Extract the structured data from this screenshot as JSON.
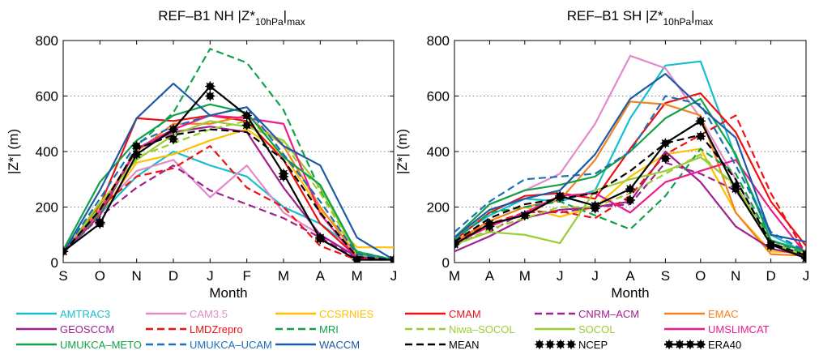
{
  "chart_data": [
    {
      "type": "line",
      "title": "REF–B1 NH |Z*",
      "title_sub": "10hPa",
      "title_tail": "|",
      "title_sub2": "max",
      "xlabel": "Month",
      "ylabel": "|Z*| (m)",
      "categories": [
        "S",
        "O",
        "N",
        "D",
        "J",
        "F",
        "M",
        "A",
        "M",
        "J"
      ],
      "yticks": [
        0,
        200,
        400,
        600,
        800
      ],
      "ylim": [
        0,
        800
      ],
      "grid": "horizontal dotted",
      "series": [
        {
          "name": "AMTRAC3",
          "values": [
            45,
            175,
            310,
            400,
            350,
            310,
            200,
            140,
            40,
            10
          ]
        },
        {
          "name": "CAM3.5",
          "values": [
            40,
            190,
            330,
            370,
            235,
            350,
            180,
            100,
            20,
            10
          ]
        },
        {
          "name": "CCSRNIES",
          "values": [
            35,
            175,
            360,
            390,
            440,
            480,
            390,
            190,
            55,
            55
          ]
        },
        {
          "name": "CMAM",
          "values": [
            35,
            205,
            520,
            510,
            530,
            510,
            370,
            140,
            20,
            10
          ]
        },
        {
          "name": "CNRM–ACM",
          "values": [
            35,
            165,
            270,
            350,
            260,
            210,
            160,
            90,
            15,
            10
          ]
        },
        {
          "name": "EMAC",
          "values": [
            35,
            200,
            400,
            500,
            500,
            530,
            420,
            200,
            25,
            10
          ]
        },
        {
          "name": "GEOSCCM",
          "values": [
            35,
            170,
            410,
            470,
            490,
            470,
            270,
            100,
            20,
            10
          ]
        },
        {
          "name": "LMDZrepro",
          "values": [
            40,
            200,
            310,
            340,
            420,
            270,
            200,
            60,
            10,
            10
          ]
        },
        {
          "name": "MRI",
          "values": [
            35,
            175,
            420,
            540,
            770,
            720,
            550,
            260,
            40,
            10
          ]
        },
        {
          "name": "Niwa–SOCOL",
          "values": [
            35,
            200,
            380,
            430,
            480,
            510,
            430,
            250,
            30,
            10
          ]
        },
        {
          "name": "SOCOL",
          "values": [
            35,
            215,
            370,
            460,
            510,
            490,
            440,
            270,
            30,
            10
          ]
        },
        {
          "name": "UMSLIMCAT",
          "values": [
            35,
            185,
            410,
            480,
            530,
            520,
            500,
            175,
            15,
            10
          ]
        },
        {
          "name": "UMUKCA–METO",
          "values": [
            45,
            290,
            440,
            530,
            570,
            540,
            380,
            280,
            35,
            10
          ]
        },
        {
          "name": "UMUKCA–UCAM",
          "values": [
            35,
            230,
            430,
            490,
            530,
            560,
            390,
            220,
            30,
            10
          ]
        },
        {
          "name": "WACCM",
          "values": [
            35,
            260,
            520,
            645,
            530,
            560,
            420,
            350,
            90,
            10
          ]
        },
        {
          "name": "MEAN",
          "values": [
            35,
            190,
            410,
            460,
            480,
            470,
            370,
            180,
            20,
            10
          ]
        },
        {
          "name": "NCEP",
          "values": [
            40,
            145,
            420,
            445,
            600,
            495,
            310,
            90,
            10,
            10
          ]
        },
        {
          "name": "ERA40",
          "values": [
            40,
            140,
            390,
            480,
            635,
            530,
            320,
            85,
            10,
            10
          ]
        }
      ]
    },
    {
      "type": "line",
      "title": "REF–B1 SH |Z*",
      "title_sub": "10hPa",
      "title_tail": "|",
      "title_sub2": "max",
      "xlabel": "Month",
      "ylabel": "|Z*| (m)",
      "categories": [
        "M",
        "A",
        "M",
        "J",
        "J",
        "A",
        "S",
        "O",
        "N",
        "D",
        "J"
      ],
      "yticks": [
        0,
        200,
        400,
        600,
        800
      ],
      "ylim": [
        0,
        800
      ],
      "grid": "horizontal dotted",
      "series": [
        {
          "name": "AMTRAC3",
          "values": [
            90,
            170,
            230,
            220,
            260,
            520,
            710,
            725,
            380,
            100,
            35
          ]
        },
        {
          "name": "CAM3.5",
          "values": [
            90,
            210,
            260,
            320,
            500,
            745,
            700,
            520,
            300,
            70,
            30
          ]
        },
        {
          "name": "CCSRNIES",
          "values": [
            70,
            150,
            200,
            165,
            200,
            310,
            390,
            410,
            180,
            40,
            35
          ]
        },
        {
          "name": "CMAM",
          "values": [
            80,
            180,
            240,
            250,
            230,
            410,
            575,
            610,
            470,
            220,
            60
          ]
        },
        {
          "name": "CNRM–ACM",
          "values": [
            70,
            110,
            185,
            180,
            200,
            210,
            360,
            320,
            260,
            80,
            40
          ]
        },
        {
          "name": "EMAC",
          "values": [
            75,
            150,
            200,
            225,
            370,
            580,
            570,
            530,
            180,
            30,
            25
          ]
        },
        {
          "name": "GEOSCCM",
          "values": [
            40,
            95,
            160,
            190,
            200,
            220,
            400,
            290,
            130,
            50,
            25
          ]
        },
        {
          "name": "LMDZrepro",
          "values": [
            75,
            140,
            180,
            185,
            160,
            240,
            390,
            460,
            530,
            250,
            30
          ]
        },
        {
          "name": "MRI",
          "values": [
            80,
            180,
            200,
            220,
            170,
            120,
            240,
            410,
            320,
            80,
            30
          ]
        },
        {
          "name": "Niwa–SOCOL",
          "values": [
            60,
            120,
            160,
            200,
            200,
            250,
            320,
            390,
            270,
            70,
            25
          ]
        },
        {
          "name": "SOCOL",
          "values": [
            65,
            110,
            100,
            70,
            260,
            300,
            330,
            380,
            280,
            70,
            25
          ]
        },
        {
          "name": "UMSLIMCAT",
          "values": [
            70,
            130,
            180,
            240,
            250,
            180,
            290,
            330,
            370,
            190,
            30
          ]
        },
        {
          "name": "UMUKCA–METO",
          "values": [
            90,
            210,
            260,
            280,
            310,
            400,
            520,
            590,
            390,
            80,
            40
          ]
        },
        {
          "name": "UMUKCA–UCAM",
          "values": [
            110,
            220,
            300,
            310,
            320,
            400,
            600,
            570,
            350,
            110,
            40
          ]
        },
        {
          "name": "WACCM",
          "values": [
            90,
            190,
            230,
            260,
            390,
            590,
            680,
            560,
            450,
            100,
            75
          ]
        },
        {
          "name": "MEAN",
          "values": [
            75,
            160,
            210,
            230,
            250,
            330,
            430,
            460,
            300,
            70,
            25
          ]
        },
        {
          "name": "NCEP",
          "values": [
            70,
            130,
            170,
            235,
            195,
            225,
            375,
            455,
            275,
            60,
            30
          ]
        },
        {
          "name": "ERA40",
          "values": [
            65,
            140,
            170,
            240,
            205,
            265,
            430,
            510,
            265,
            65,
            15
          ]
        }
      ]
    }
  ],
  "legend": {
    "placement": "bottom",
    "entries": [
      {
        "name": "AMTRAC3",
        "color": "#17becf",
        "style": "solid",
        "textcolor": "#17becf"
      },
      {
        "name": "CAM3.5",
        "color": "#e28ac9",
        "style": "solid",
        "textcolor": "#e28ac9"
      },
      {
        "name": "CCSRNIES",
        "color": "#ffc000",
        "style": "solid",
        "textcolor": "#ffc000"
      },
      {
        "name": "CMAM",
        "color": "#ee1111",
        "style": "solid",
        "textcolor": "#ee1111"
      },
      {
        "name": "CNRM–ACM",
        "color": "#a0208e",
        "style": "dashed",
        "textcolor": "#a0208e"
      },
      {
        "name": "EMAC",
        "color": "#f58220",
        "style": "solid",
        "textcolor": "#f58220"
      },
      {
        "name": "GEOSCCM",
        "color": "#a0208e",
        "style": "solid",
        "textcolor": "#a0208e"
      },
      {
        "name": "LMDZrepro",
        "color": "#ee1111",
        "style": "dashed",
        "textcolor": "#ee1111"
      },
      {
        "name": "MRI",
        "color": "#12a14b",
        "style": "dashed",
        "textcolor": "#12a14b"
      },
      {
        "name": "Niwa–SOCOL",
        "color": "#9acd32",
        "style": "dashed",
        "textcolor": "#9acd32"
      },
      {
        "name": "SOCOL",
        "color": "#9acd32",
        "style": "solid",
        "textcolor": "#9acd32"
      },
      {
        "name": "UMSLIMCAT",
        "color": "#ec1c8c",
        "style": "solid",
        "textcolor": "#ec1c8c"
      },
      {
        "name": "UMUKCA–METO",
        "color": "#12a14b",
        "style": "solid",
        "textcolor": "#12a14b"
      },
      {
        "name": "UMUKCA–UCAM",
        "color": "#1f6fb4",
        "style": "dashed",
        "textcolor": "#1f6fb4"
      },
      {
        "name": "WACCM",
        "color": "#1f5aa6",
        "style": "solid",
        "textcolor": "#1f5aa6"
      },
      {
        "name": "MEAN",
        "color": "#000000",
        "style": "dashed",
        "textcolor": "#000000"
      },
      {
        "name": "NCEP",
        "color": "#000000",
        "style": "dots",
        "textcolor": "#000000"
      },
      {
        "name": "ERA40",
        "color": "#000000",
        "style": "solid-dots",
        "textcolor": "#000000"
      }
    ]
  }
}
